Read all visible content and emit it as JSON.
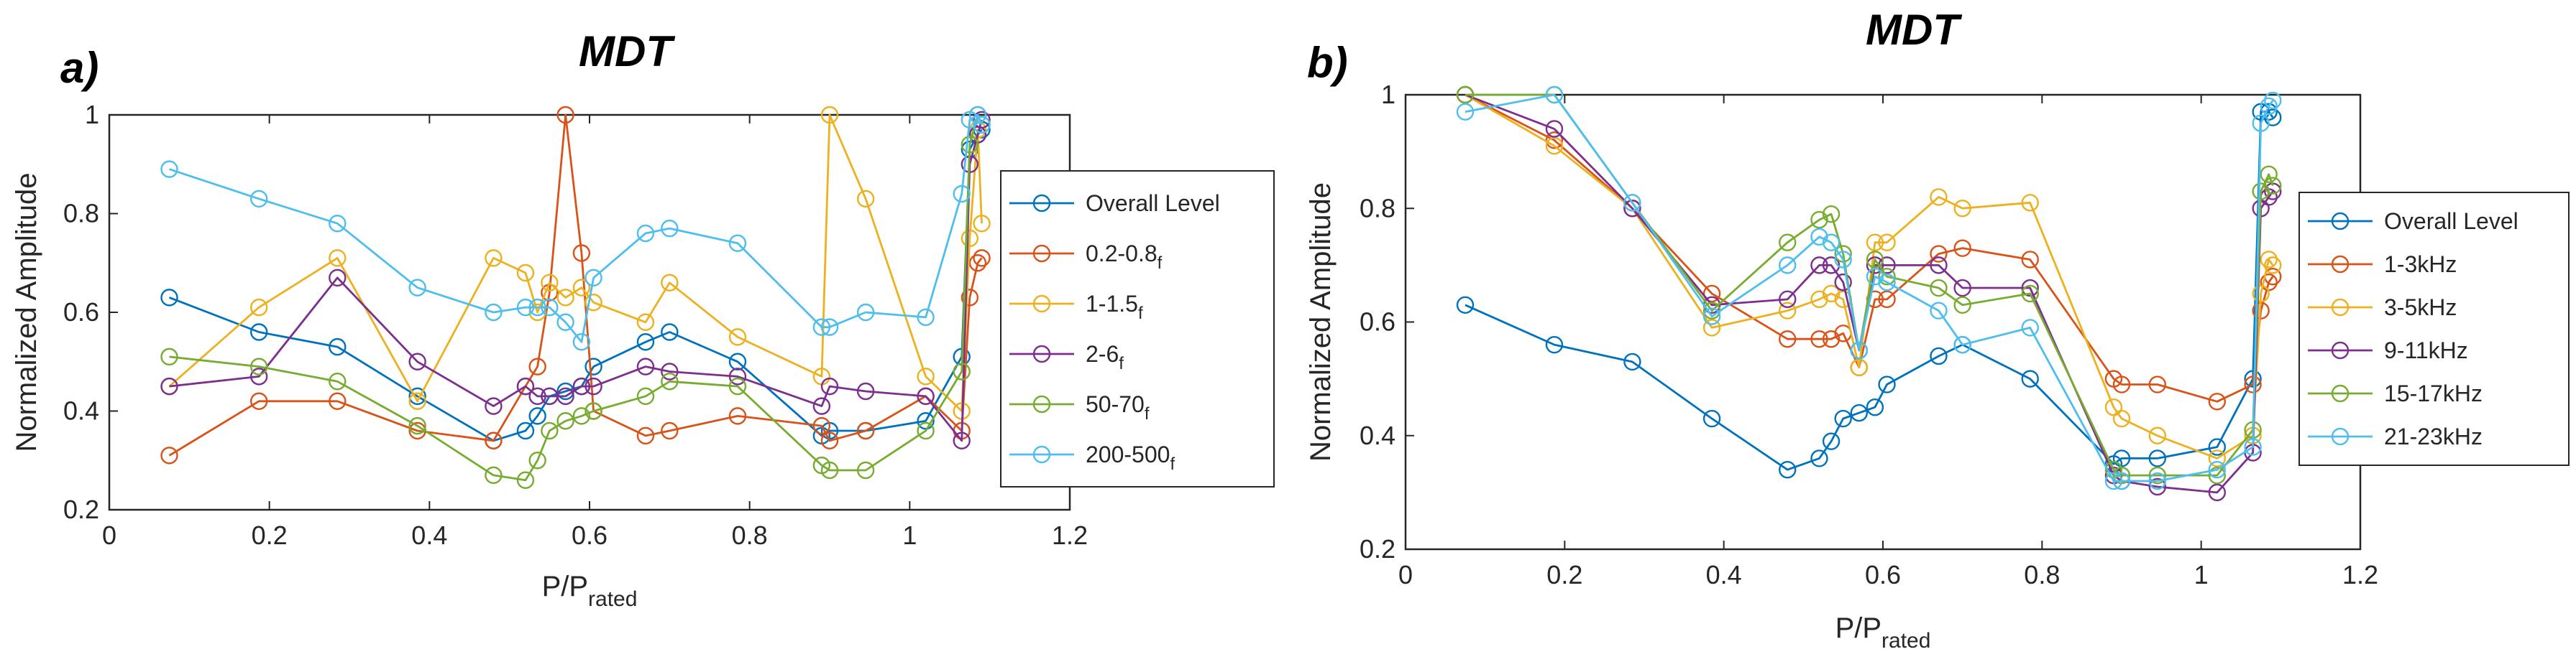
{
  "chart_data": [
    {
      "type": "line",
      "panel_label": "a)",
      "title": "MDT",
      "xlabel": {
        "base": "P/P",
        "sub": "rated"
      },
      "ylabel": "Normalized Amplitude",
      "xlim": [
        0,
        1.2
      ],
      "ylim": [
        0.2,
        1.0
      ],
      "xticks": [
        0,
        0.2,
        0.4,
        0.6,
        0.8,
        1,
        1.2
      ],
      "yticks": [
        0.2,
        0.4,
        0.6,
        0.8,
        1
      ],
      "xtick_labels": [
        "0",
        "0.2",
        "0.4",
        "0.6",
        "0.8",
        "1",
        "1.2"
      ],
      "ytick_labels": [
        "0.2",
        "0.4",
        "0.6",
        "0.8",
        "1"
      ],
      "legend_position": "right",
      "grid": false,
      "marker": "circle",
      "x": [
        0.075,
        0.187,
        0.285,
        0.385,
        0.48,
        0.52,
        0.535,
        0.55,
        0.57,
        0.59,
        0.605,
        0.67,
        0.7,
        0.785,
        0.89,
        0.9,
        0.945,
        1.02,
        1.065,
        1.075,
        1.085,
        1.09
      ],
      "series": [
        {
          "name": "Overall Level",
          "subscript": "",
          "color": "#0072BD",
          "values": [
            0.63,
            0.56,
            0.53,
            0.43,
            0.34,
            0.36,
            0.39,
            0.43,
            0.44,
            0.45,
            0.49,
            0.54,
            0.56,
            0.5,
            0.35,
            0.36,
            0.36,
            0.38,
            0.51,
            0.93,
            0.96,
            0.97
          ]
        },
        {
          "name": "0.2-0.8",
          "subscript": "f",
          "color": "#D95319",
          "values": [
            0.31,
            0.42,
            0.42,
            0.36,
            0.34,
            0.45,
            0.49,
            0.64,
            1.0,
            0.72,
            0.4,
            0.35,
            0.36,
            0.39,
            0.37,
            0.34,
            0.36,
            0.43,
            0.36,
            0.63,
            0.7,
            0.71
          ]
        },
        {
          "name": "1-1.5",
          "subscript": "f",
          "color": "#EDB120",
          "values": [
            0.45,
            0.61,
            0.71,
            0.42,
            0.71,
            0.68,
            0.6,
            0.66,
            0.63,
            0.65,
            0.62,
            0.58,
            0.66,
            0.55,
            0.47,
            1.0,
            0.83,
            0.47,
            0.4,
            0.75,
            0.97,
            0.78
          ]
        },
        {
          "name": "2-6",
          "subscript": "f",
          "color": "#7E2F8E",
          "values": [
            0.45,
            0.47,
            0.67,
            0.5,
            0.41,
            0.45,
            0.43,
            0.43,
            0.43,
            0.45,
            0.45,
            0.49,
            0.48,
            0.47,
            0.41,
            0.45,
            0.44,
            0.43,
            0.34,
            0.9,
            0.96,
            0.99
          ]
        },
        {
          "name": "50-70",
          "subscript": "f",
          "color": "#77AC30",
          "values": [
            0.51,
            0.49,
            0.46,
            0.37,
            0.27,
            0.26,
            0.3,
            0.36,
            0.38,
            0.39,
            0.4,
            0.43,
            0.46,
            0.45,
            0.29,
            0.28,
            0.28,
            0.36,
            0.48,
            0.94,
            1.0,
            0.98
          ]
        },
        {
          "name": "200-500",
          "subscript": "f",
          "color": "#4DBEEE",
          "values": [
            0.89,
            0.83,
            0.78,
            0.65,
            0.6,
            0.61,
            0.61,
            0.61,
            0.58,
            0.54,
            0.67,
            0.76,
            0.77,
            0.74,
            0.57,
            0.57,
            0.6,
            0.59,
            0.84,
            0.99,
            1.0,
            0.98
          ]
        }
      ]
    },
    {
      "type": "line",
      "panel_label": "b)",
      "title": "MDT",
      "xlabel": {
        "base": "P/P",
        "sub": "rated"
      },
      "ylabel": "Normalized Amplitude",
      "xlim": [
        0,
        1.2
      ],
      "ylim": [
        0.2,
        1.0
      ],
      "xticks": [
        0,
        0.2,
        0.4,
        0.6,
        0.8,
        1,
        1.2
      ],
      "yticks": [
        0.2,
        0.4,
        0.6,
        0.8,
        1
      ],
      "xtick_labels": [
        "0",
        "0.2",
        "0.4",
        "0.6",
        "0.8",
        "1",
        "1.2"
      ],
      "ytick_labels": [
        "0.2",
        "0.4",
        "0.6",
        "0.8",
        "1"
      ],
      "legend_position": "right",
      "grid": false,
      "marker": "circle",
      "x": [
        0.075,
        0.187,
        0.285,
        0.385,
        0.48,
        0.52,
        0.535,
        0.55,
        0.57,
        0.59,
        0.605,
        0.67,
        0.7,
        0.785,
        0.89,
        0.9,
        0.945,
        1.02,
        1.065,
        1.075,
        1.085,
        1.09
      ],
      "series": [
        {
          "name": "Overall Level",
          "subscript": "",
          "color": "#0072BD",
          "values": [
            0.63,
            0.56,
            0.53,
            0.43,
            0.34,
            0.36,
            0.39,
            0.43,
            0.44,
            0.45,
            0.49,
            0.54,
            0.56,
            0.5,
            0.35,
            0.36,
            0.36,
            0.38,
            0.5,
            0.97,
            0.97,
            0.96
          ]
        },
        {
          "name": "1-3kHz",
          "subscript": "",
          "color": "#D95319",
          "values": [
            1.0,
            0.92,
            0.8,
            0.65,
            0.57,
            0.57,
            0.57,
            0.58,
            0.52,
            0.64,
            0.64,
            0.72,
            0.73,
            0.71,
            0.5,
            0.49,
            0.49,
            0.46,
            0.49,
            0.62,
            0.67,
            0.68
          ]
        },
        {
          "name": "3-5kHz",
          "subscript": "",
          "color": "#EDB120",
          "values": [
            1.0,
            0.91,
            0.8,
            0.59,
            0.62,
            0.64,
            0.65,
            0.64,
            0.52,
            0.74,
            0.74,
            0.82,
            0.8,
            0.81,
            0.45,
            0.43,
            0.4,
            0.36,
            0.4,
            0.65,
            0.71,
            0.7
          ]
        },
        {
          "name": "9-11kHz",
          "subscript": "",
          "color": "#7E2F8E",
          "values": [
            1.0,
            0.94,
            0.8,
            0.63,
            0.64,
            0.7,
            0.7,
            0.67,
            0.55,
            0.7,
            0.7,
            0.7,
            0.66,
            0.66,
            0.33,
            0.32,
            0.31,
            0.3,
            0.37,
            0.8,
            0.82,
            0.83
          ]
        },
        {
          "name": "15-17kHz",
          "subscript": "",
          "color": "#77AC30",
          "values": [
            1.0,
            1.0,
            0.81,
            0.62,
            0.74,
            0.78,
            0.79,
            0.72,
            0.55,
            0.71,
            0.68,
            0.66,
            0.63,
            0.65,
            0.34,
            0.33,
            0.33,
            0.33,
            0.41,
            0.83,
            0.86,
            0.84
          ]
        },
        {
          "name": "21-23kHz",
          "subscript": "",
          "color": "#4DBEEE",
          "values": [
            0.97,
            1.0,
            0.81,
            0.61,
            0.7,
            0.75,
            0.74,
            0.71,
            0.55,
            0.68,
            0.67,
            0.62,
            0.56,
            0.59,
            0.32,
            0.32,
            0.32,
            0.34,
            0.38,
            0.95,
            0.98,
            0.99
          ]
        }
      ]
    }
  ]
}
